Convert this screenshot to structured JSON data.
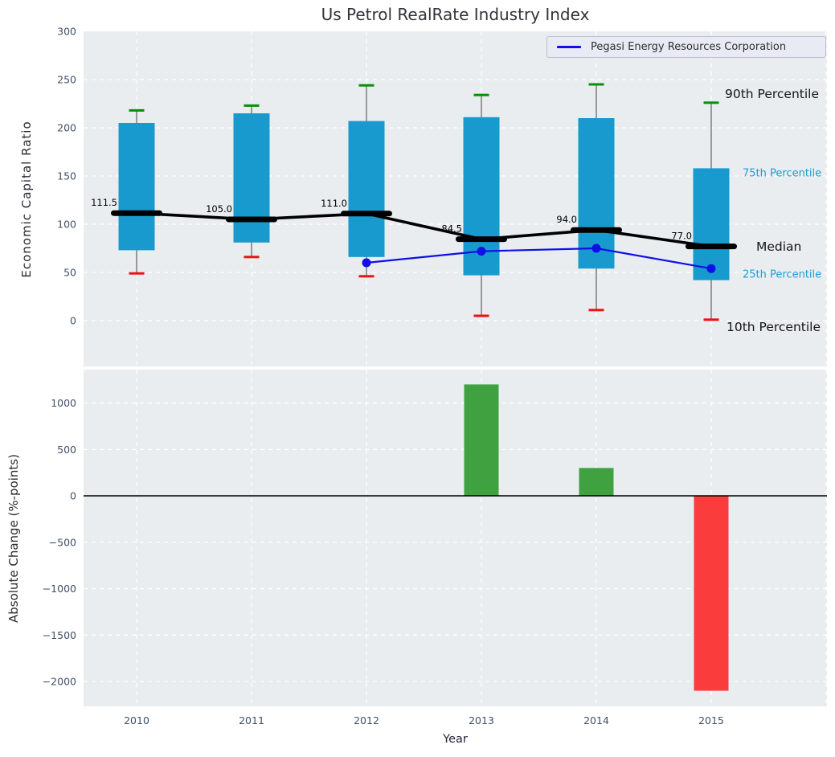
{
  "title": "Us Petrol RealRate Industry Index",
  "legend": {
    "label": "Pegasi Energy Resources Corporation"
  },
  "colors": {
    "plot_background": "#e9edf0",
    "grid": "#ffffff",
    "tick_label": "#3f5069",
    "box_fill": "#199ace",
    "whisker_line": "#6b6b6b",
    "cap_90th": "#088f08",
    "cap_10th": "#ee1111",
    "median": "#000000",
    "company_line": "#0f0fe8",
    "bar_positive": "#3fa13f",
    "bar_negative": "#fa3c3c",
    "zero_line": "#000000",
    "annotation_dark": "#151515",
    "annotation_cyan": "#1b9fd0"
  },
  "chart_data": [
    {
      "type": "boxplot-percentiles",
      "title": "Us Petrol RealRate Industry Index",
      "ylabel": "Economic Capital Ratio",
      "categories": [
        "2010",
        "2011",
        "2012",
        "2013",
        "2014",
        "2015"
      ],
      "yticks": [
        300,
        250,
        200,
        150,
        100,
        50,
        0
      ],
      "ylim": [
        -47,
        300
      ],
      "grid": true,
      "legend_position": "upper right",
      "series": {
        "p10": [
          49,
          66,
          46,
          5,
          11,
          1
        ],
        "p25": [
          73,
          81,
          66,
          47,
          54,
          42
        ],
        "median": [
          111.5,
          105.0,
          111.0,
          84.5,
          94.0,
          77.0
        ],
        "p75": [
          205,
          215,
          207,
          211,
          210,
          158
        ],
        "p90": [
          218,
          223,
          244,
          234,
          245,
          226
        ]
      },
      "median_labels": [
        "111.5",
        "105.0",
        "111.0",
        "84.5",
        "94.0",
        "77.0"
      ],
      "company_series": {
        "name": "Pegasi Energy Resources Corporation",
        "x": [
          "2012",
          "2013",
          "2014",
          "2015"
        ],
        "values": [
          60,
          72,
          75,
          54
        ]
      },
      "annotations": {
        "p90": "90th Percentile",
        "p75": "75th Percentile",
        "median": "Median",
        "p25": "25th Percentile",
        "p10": "10th Percentile"
      }
    },
    {
      "type": "bar",
      "ylabel": "Absolute Change (%-points)",
      "xlabel": "Year",
      "categories": [
        "2010",
        "2011",
        "2012",
        "2013",
        "2014",
        "2015"
      ],
      "values": [
        null,
        null,
        null,
        1200,
        300,
        -2100
      ],
      "yticks": [
        1000,
        500,
        0,
        -500,
        -1000,
        -1500,
        -2000
      ],
      "ylim": [
        -2270,
        1360
      ],
      "grid": true
    }
  ]
}
